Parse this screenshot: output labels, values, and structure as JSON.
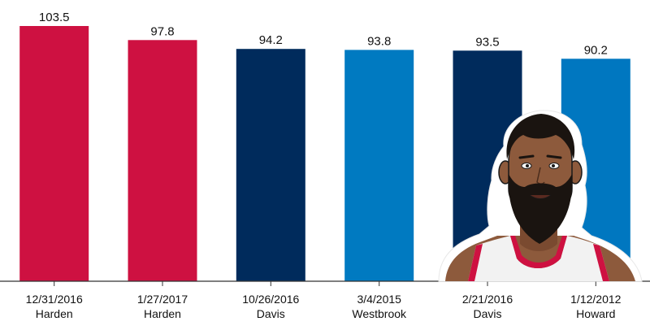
{
  "chart_data": {
    "type": "bar",
    "title": "",
    "xlabel": "",
    "ylabel": "",
    "ylim": [
      0,
      103.5
    ],
    "grid": false,
    "legend": "none",
    "bars": [
      {
        "date": "12/31/2016",
        "player": "Harden",
        "value": 103.5,
        "value_label": "103.5",
        "color": "#CE1141"
      },
      {
        "date": "1/27/2017",
        "player": "Harden",
        "value": 97.8,
        "value_label": "97.8",
        "color": "#CE1141"
      },
      {
        "date": "10/26/2016",
        "player": "Davis",
        "value": 94.2,
        "value_label": "94.2",
        "color": "#002B5C"
      },
      {
        "date": "3/4/2015",
        "player": "Westbrook",
        "value": 93.8,
        "value_label": "93.8",
        "color": "#007AC1"
      },
      {
        "date": "2/21/2016",
        "player": "Davis",
        "value": 93.5,
        "value_label": "93.5",
        "color": "#002B5C"
      },
      {
        "date": "1/12/2012",
        "player": "Howard",
        "value": 90.2,
        "value_label": "90.2",
        "color": "#0077C0"
      }
    ],
    "categories": [
      "12/31/2016",
      "1/27/2017",
      "10/26/2016",
      "3/4/2015",
      "2/21/2016",
      "1/12/2012"
    ],
    "values": [
      103.5,
      97.8,
      94.2,
      93.8,
      93.5,
      90.2
    ]
  },
  "illustration": {
    "icon": "player-portrait-icon"
  }
}
